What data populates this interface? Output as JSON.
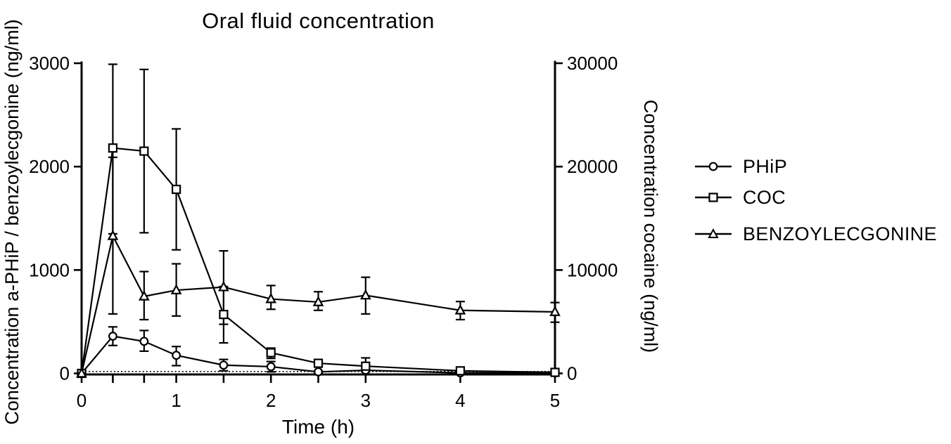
{
  "chart_data": {
    "type": "line",
    "title": "Oral fluid concentration",
    "xlabel": "Time (h)",
    "ylabel_left": "Concentration a-PHiP / benzoylecgonine (ng/ml)",
    "ylabel_right": "Concentration cocaine (ng/ml)",
    "xlim": [
      0,
      5
    ],
    "ylim_left": [
      0,
      3000
    ],
    "ylim_right": [
      0,
      30000
    ],
    "y_ticks_left": [
      0,
      1000,
      2000,
      3000
    ],
    "y_ticks_right": [
      0,
      10000,
      20000,
      30000
    ],
    "x_ticks_labeled": [
      0,
      1,
      2,
      3,
      4,
      5
    ],
    "x_ticks_all": [
      0,
      0.33,
      0.66,
      1,
      1.5,
      2,
      2.5,
      3,
      4,
      5
    ],
    "grid": "off",
    "zero_baseline": "dotted",
    "legend_position": "right",
    "error_bars": "sd",
    "x": [
      0,
      0.33,
      0.66,
      1,
      1.5,
      2,
      2.5,
      3,
      4,
      5
    ],
    "series": [
      {
        "name": "PHiP",
        "marker": "circle",
        "axis": "left",
        "values": [
          0,
          360,
          310,
          175,
          80,
          65,
          15,
          30,
          5,
          5
        ],
        "err_low": [
          0,
          270,
          215,
          75,
          25,
          15,
          5,
          30,
          5,
          5
        ],
        "err_high": [
          0,
          450,
          415,
          260,
          135,
          115,
          25,
          30,
          10,
          10
        ]
      },
      {
        "name": "COC",
        "marker": "square",
        "axis": "right",
        "values": [
          0,
          21800,
          21500,
          17800,
          5700,
          2000,
          980,
          700,
          250,
          100
        ],
        "err_low": [
          0,
          13500,
          13600,
          11950,
          2950,
          1450,
          800,
          140,
          150,
          100
        ],
        "err_high": [
          0,
          29900,
          29400,
          23650,
          8400,
          2450,
          1150,
          1500,
          350,
          100
        ]
      },
      {
        "name": "BENZOYLECGONINE",
        "marker": "triangle",
        "axis": "left",
        "values": [
          0,
          1330,
          745,
          805,
          835,
          720,
          690,
          755,
          610,
          595
        ],
        "err_low": [
          0,
          575,
          520,
          555,
          475,
          620,
          610,
          575,
          520,
          495
        ],
        "err_high": [
          0,
          2090,
          985,
          1060,
          1185,
          850,
          790,
          930,
          695,
          685
        ]
      }
    ],
    "colors": {
      "line": "#000000",
      "marker_fill": "#ffffff",
      "background": "#ffffff"
    }
  }
}
